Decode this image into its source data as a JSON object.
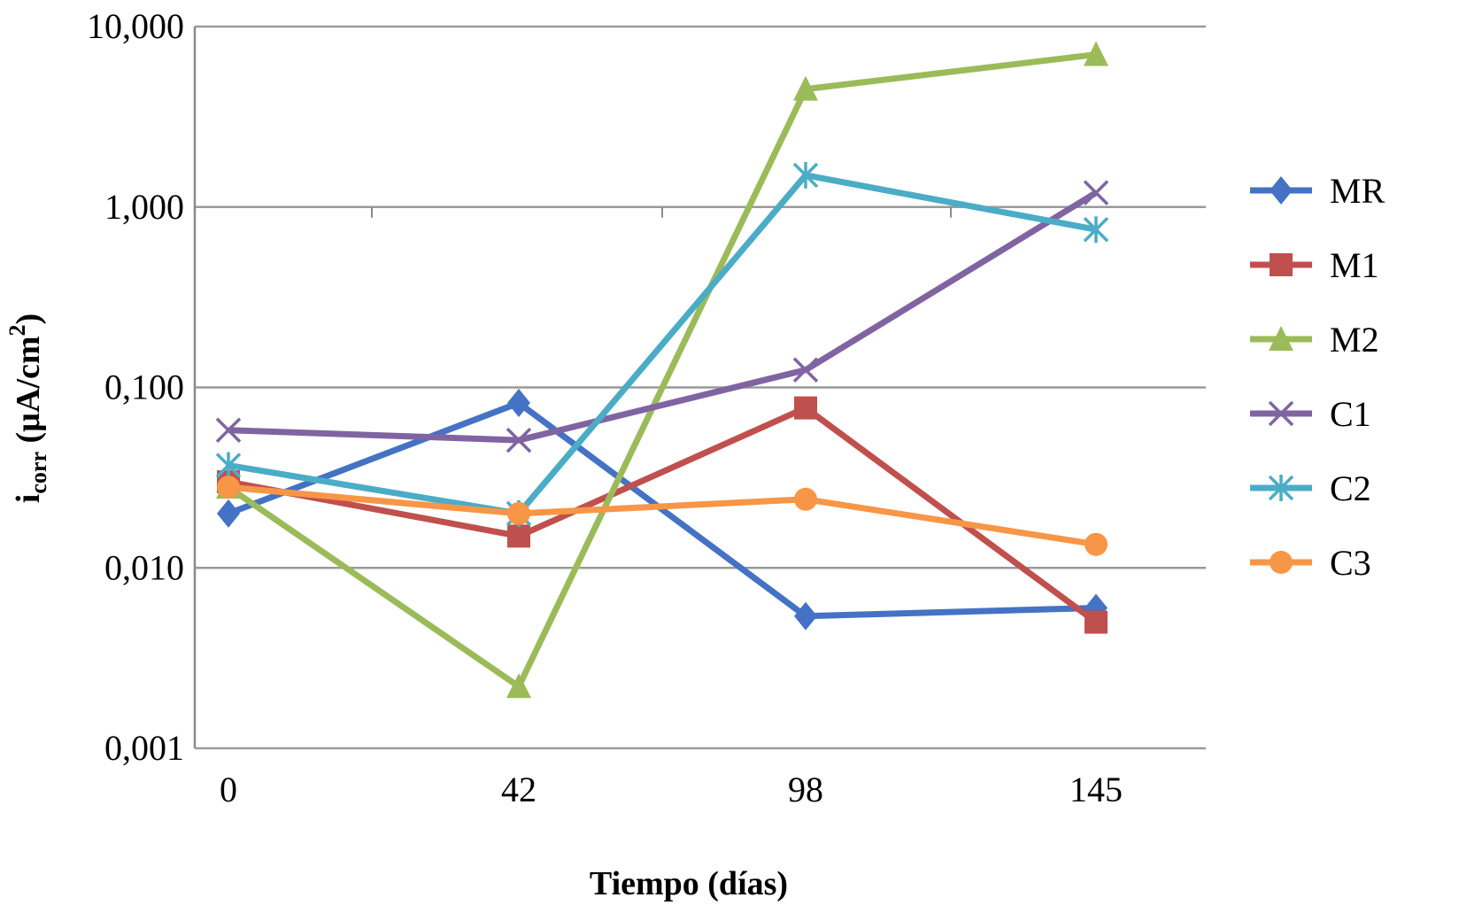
{
  "chart_data": {
    "type": "line",
    "title": "",
    "xlabel": "Tiempo (días)",
    "ylabel": {
      "prefix": "i",
      "subscript": "corr",
      "unit_open": " (µA/cm",
      "superscript": "2",
      "unit_close": ")"
    },
    "y_scale": "log",
    "ylim": [
      0.001,
      10
    ],
    "y_ticks": [
      0.001,
      0.01,
      0.1,
      1,
      10
    ],
    "y_tick_labels": [
      "0,001",
      "0,010",
      "0,100",
      "1,000",
      "10,000"
    ],
    "categories": [
      "0",
      "42",
      "98",
      "145"
    ],
    "grid": true,
    "legend_position": "right",
    "series": [
      {
        "name": "MR",
        "marker": "diamond",
        "color": "#4472C4",
        "values": [
          0.02,
          0.082,
          0.0054,
          0.006
        ]
      },
      {
        "name": "M1",
        "marker": "square",
        "color": "#C0504D",
        "values": [
          0.03,
          0.015,
          0.077,
          0.005
        ]
      },
      {
        "name": "M2",
        "marker": "triangle",
        "color": "#9BBB59",
        "values": [
          0.028,
          0.0022,
          4.5,
          7.0
        ]
      },
      {
        "name": "C1",
        "marker": "x",
        "color": "#8064A2",
        "values": [
          0.058,
          0.051,
          0.125,
          1.2
        ]
      },
      {
        "name": "C2",
        "marker": "star",
        "color": "#4BACC6",
        "values": [
          0.037,
          0.02,
          1.5,
          0.75
        ]
      },
      {
        "name": "C3",
        "marker": "circle",
        "color": "#F79646",
        "values": [
          0.028,
          0.02,
          0.024,
          0.0135
        ]
      }
    ]
  }
}
